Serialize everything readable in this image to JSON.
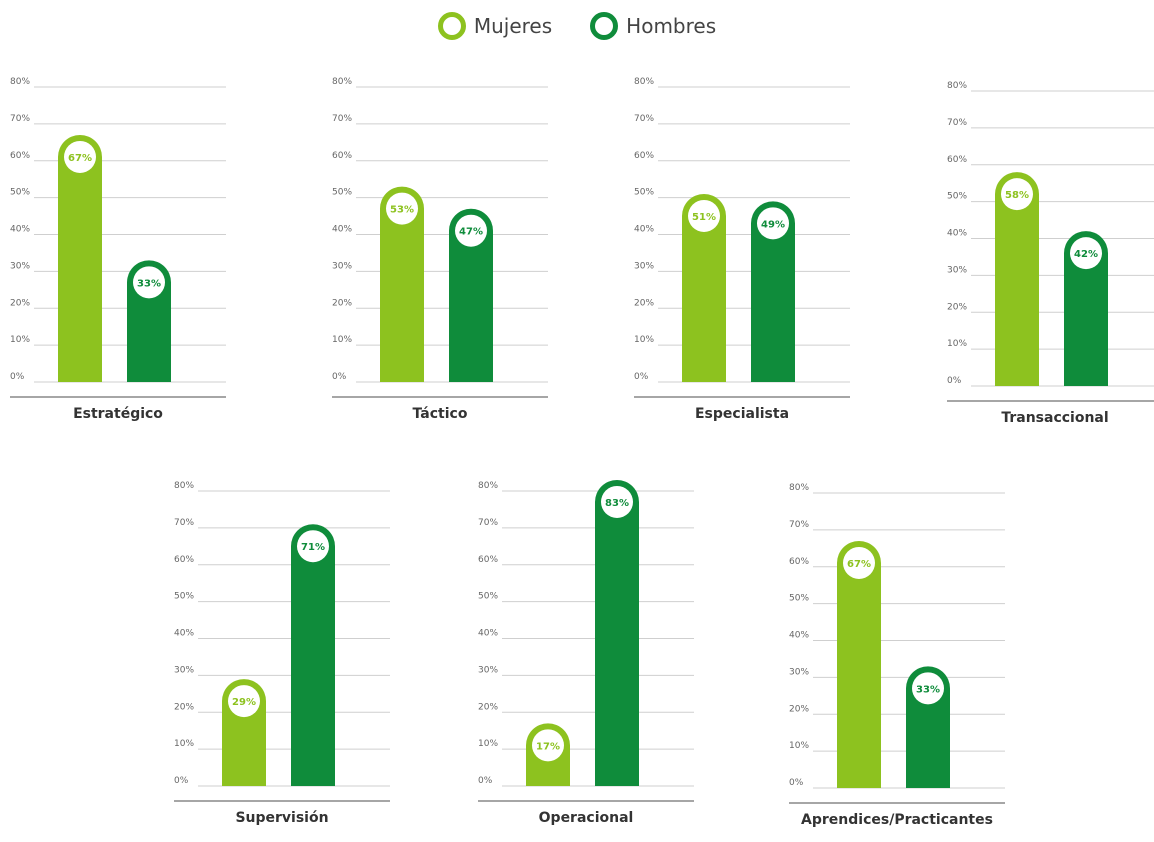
{
  "legend": {
    "women_label": "Mujeres",
    "men_label": "Hombres"
  },
  "colors": {
    "women": "#8dc21f",
    "men": "#0f8c3b",
    "grid": "#cfcfcf",
    "baseline": "#888888",
    "tick_text": "#666666",
    "title_text": "#333333"
  },
  "chart_data": [
    {
      "type": "bar",
      "title": "Estratégico",
      "categories": [
        "Mujeres",
        "Hombres"
      ],
      "values": [
        67,
        33
      ],
      "labels": [
        "67%",
        "33%"
      ],
      "ylim": [
        0,
        80
      ],
      "yticks": [
        "0%",
        "10%",
        "20%",
        "30%",
        "40%",
        "50%",
        "60%",
        "70%",
        "80%"
      ],
      "grid": true,
      "legend": "top-center"
    },
    {
      "type": "bar",
      "title": "Táctico",
      "categories": [
        "Mujeres",
        "Hombres"
      ],
      "values": [
        53,
        47
      ],
      "labels": [
        "53%",
        "47%"
      ],
      "ylim": [
        0,
        80
      ],
      "yticks": [
        "0%",
        "10%",
        "20%",
        "30%",
        "40%",
        "50%",
        "60%",
        "70%",
        "80%"
      ],
      "grid": true,
      "legend": "top-center"
    },
    {
      "type": "bar",
      "title": "Especialista",
      "categories": [
        "Mujeres",
        "Hombres"
      ],
      "values": [
        51,
        49
      ],
      "labels": [
        "51%",
        "49%"
      ],
      "ylim": [
        0,
        80
      ],
      "yticks": [
        "0%",
        "10%",
        "20%",
        "30%",
        "40%",
        "50%",
        "60%",
        "70%",
        "80%"
      ],
      "grid": true,
      "legend": "top-center"
    },
    {
      "type": "bar",
      "title": "Transaccional",
      "categories": [
        "Mujeres",
        "Hombres"
      ],
      "values": [
        58,
        42
      ],
      "labels": [
        "58%",
        "42%"
      ],
      "ylim": [
        0,
        80
      ],
      "yticks": [
        "0%",
        "10%",
        "20%",
        "30%",
        "40%",
        "50%",
        "60%",
        "70%",
        "80%"
      ],
      "grid": true,
      "legend": "top-center"
    },
    {
      "type": "bar",
      "title": "Supervisión",
      "categories": [
        "Mujeres",
        "Hombres"
      ],
      "values": [
        29,
        71
      ],
      "labels": [
        "29%",
        "71%"
      ],
      "ylim": [
        0,
        80
      ],
      "yticks": [
        "0%",
        "10%",
        "20%",
        "30%",
        "40%",
        "50%",
        "60%",
        "70%",
        "80%"
      ],
      "grid": true,
      "legend": "top-center"
    },
    {
      "type": "bar",
      "title": "Operacional",
      "categories": [
        "Mujeres",
        "Hombres"
      ],
      "values": [
        17,
        83
      ],
      "labels": [
        "17%",
        "83%"
      ],
      "ylim": [
        0,
        80
      ],
      "yticks": [
        "0%",
        "10%",
        "20%",
        "30%",
        "40%",
        "50%",
        "60%",
        "70%",
        "80%"
      ],
      "grid": true,
      "legend": "top-center"
    },
    {
      "type": "bar",
      "title": "Aprendices/Practicantes",
      "categories": [
        "Mujeres",
        "Hombres"
      ],
      "values": [
        67,
        33
      ],
      "labels": [
        "67%",
        "33%"
      ],
      "ylim": [
        0,
        80
      ],
      "yticks": [
        "0%",
        "10%",
        "20%",
        "30%",
        "40%",
        "50%",
        "60%",
        "70%",
        "80%"
      ],
      "grid": true,
      "legend": "top-center"
    }
  ]
}
